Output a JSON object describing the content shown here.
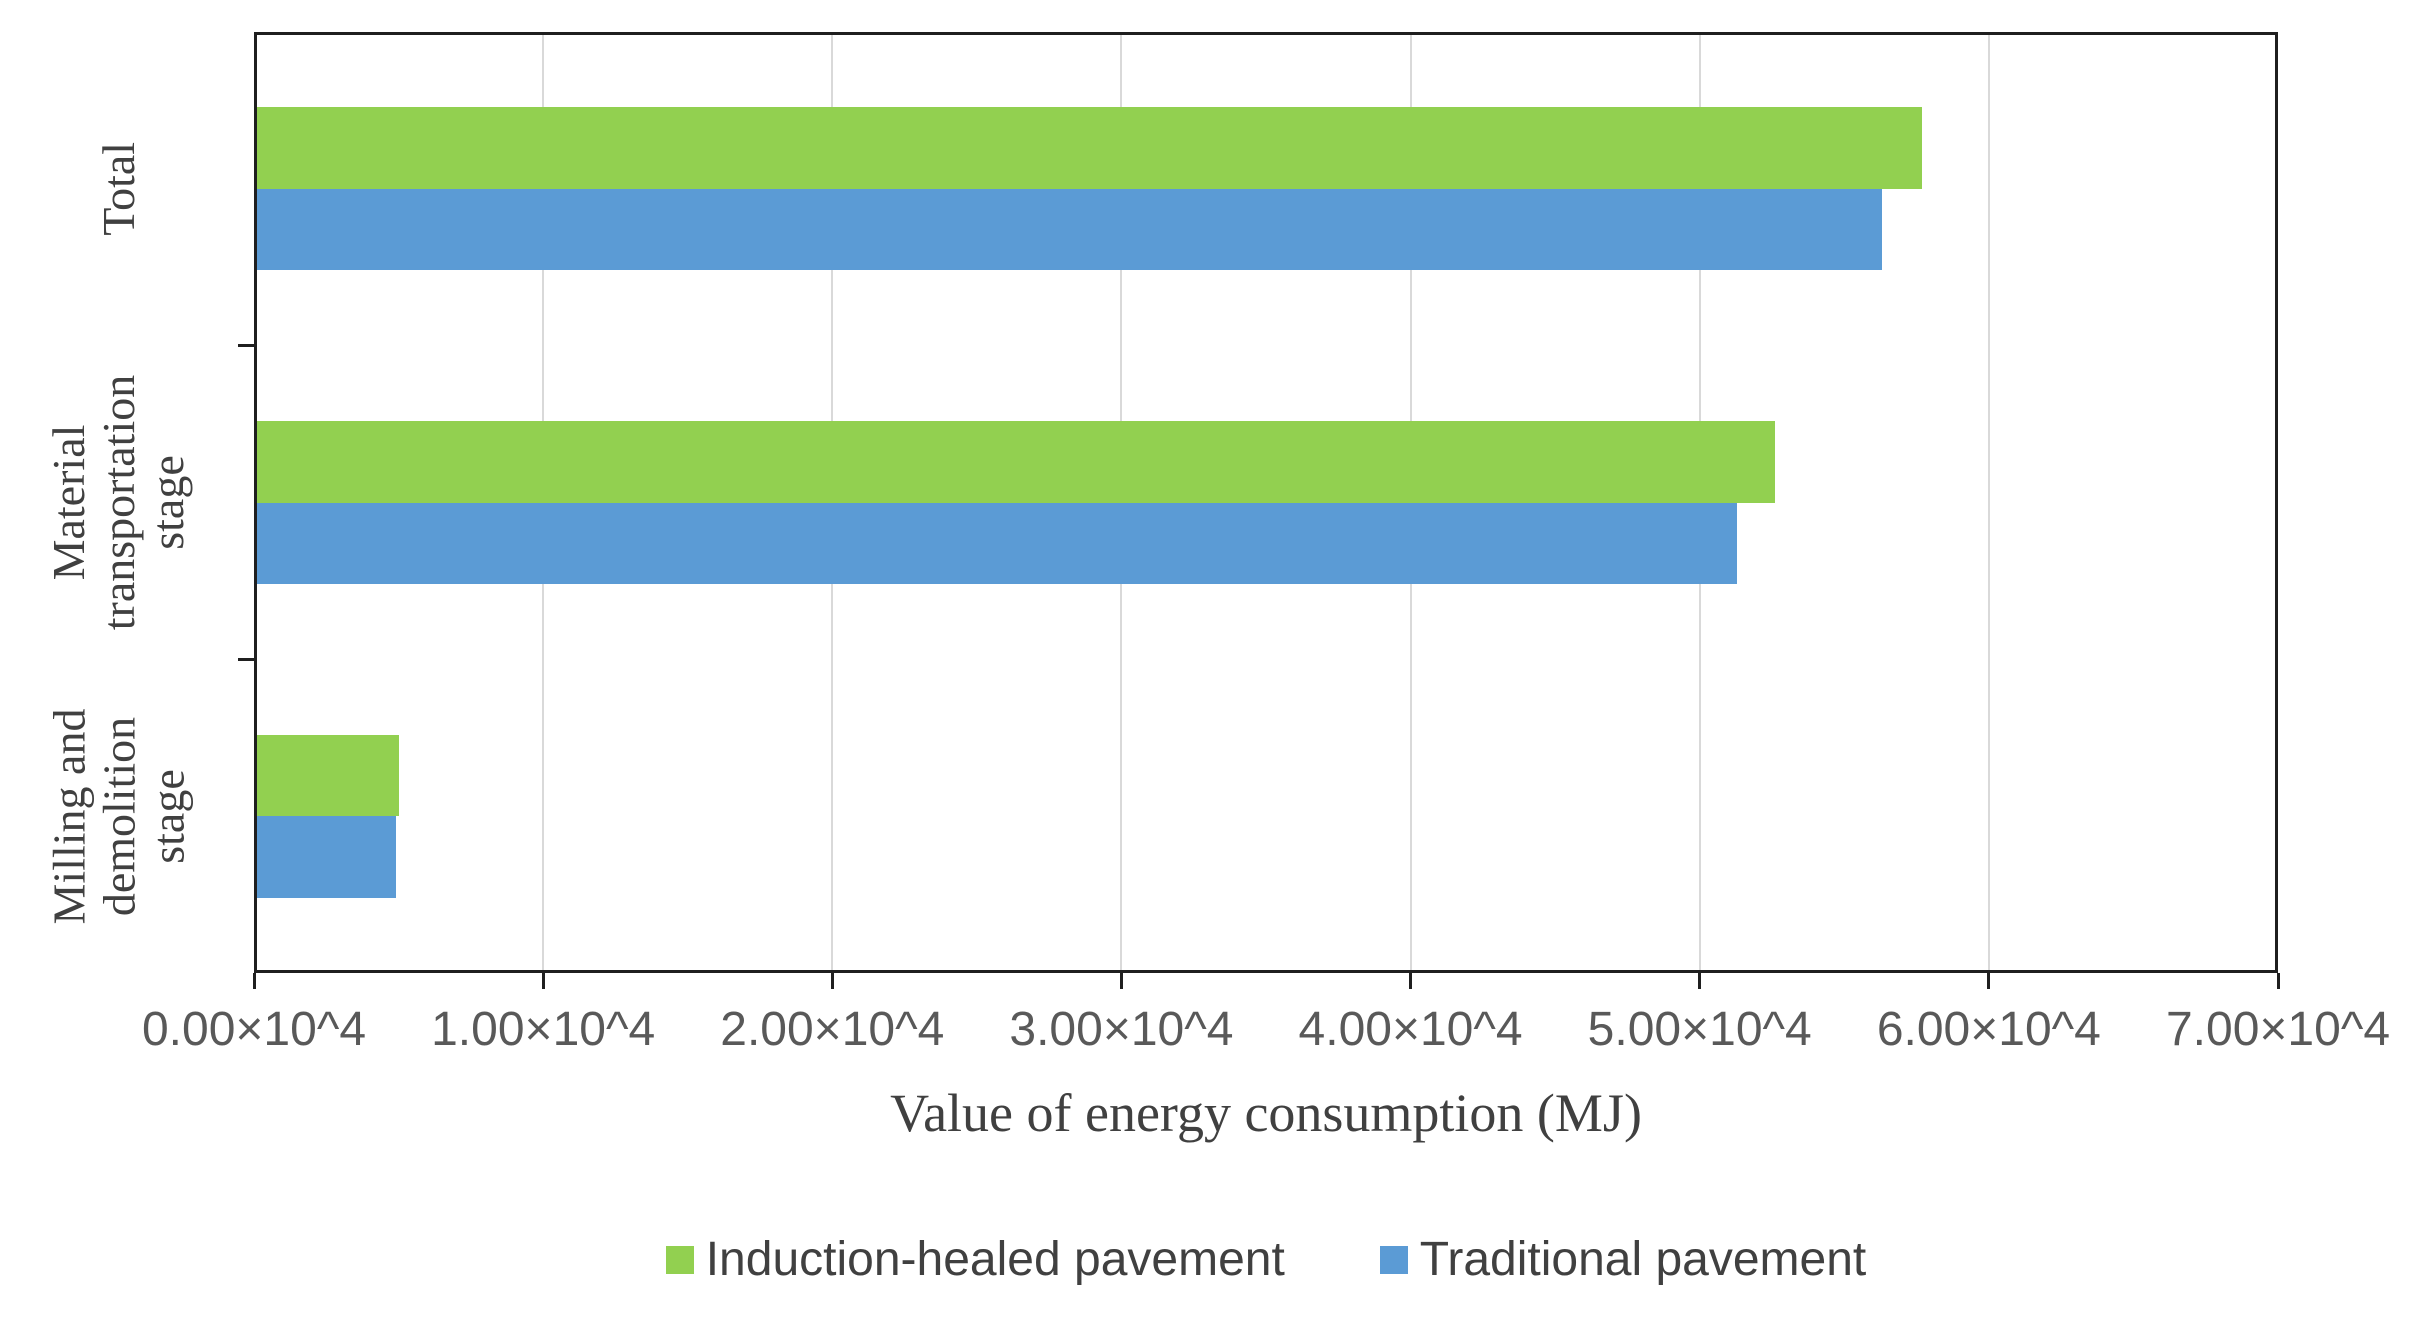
{
  "chart_data": {
    "type": "bar",
    "orientation": "horizontal",
    "title": "",
    "xlabel": "Value of energy consumption (MJ)",
    "ylabel": "",
    "xlim": [
      0,
      70000
    ],
    "x_tick_interval": 10000,
    "x_tick_labels": [
      "0.00×10^4",
      "1.00×10^4",
      "2.00×10^4",
      "3.00×10^4",
      "4.00×10^4",
      "5.00×10^4",
      "6.00×10^4",
      "7.00×10^4"
    ],
    "grid": true,
    "legend_position": "bottom",
    "categories": [
      "Total",
      "Material transportation stage",
      "Milling and demolition stage"
    ],
    "categories_display_lines": [
      [
        "Total"
      ],
      [
        "Material",
        "transportation",
        "stage"
      ],
      [
        "Milling and",
        "demolition",
        "stage"
      ]
    ],
    "series": [
      {
        "name": "Induction-healed pavement",
        "color": "#92D050",
        "values": [
          57700,
          52600,
          5000
        ]
      },
      {
        "name": "Traditional pavement",
        "color": "#5B9BD5",
        "values": [
          56300,
          51300,
          4900
        ]
      }
    ]
  },
  "colors": {
    "background": "#FFFFFF",
    "axis_border": "#1F1F1F",
    "gridline": "#D9D9D9",
    "tick_label": "#595959",
    "category_label": "#404040",
    "axis_title": "#404040",
    "legend_text": "#404040",
    "series_green": "#92D050",
    "series_blue": "#5B9BD5"
  }
}
